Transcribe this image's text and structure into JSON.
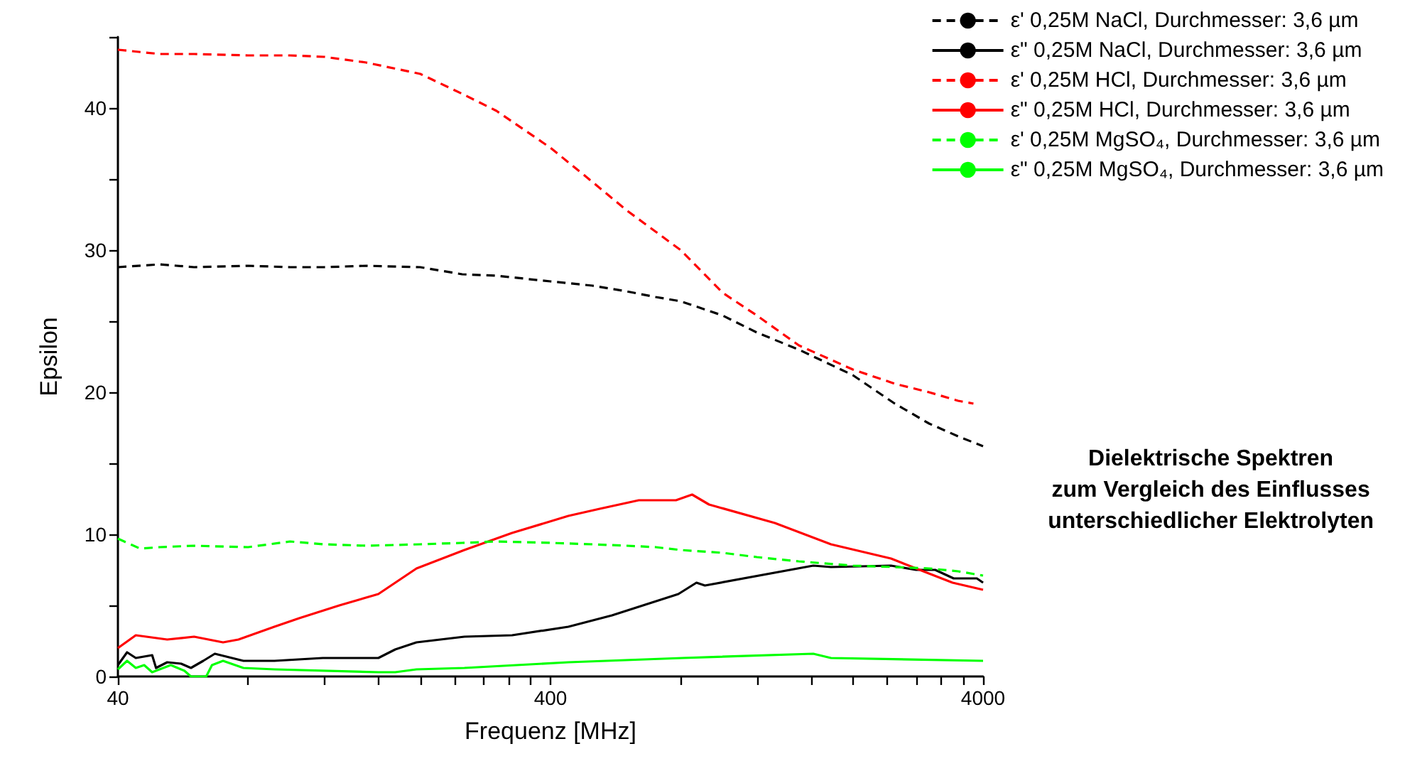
{
  "chart_data": {
    "type": "line",
    "xlabel": "Frequenz [MHz]",
    "ylabel": "Epsilon",
    "log": "x",
    "xlim": [
      40,
      4000
    ],
    "ylim": [
      0,
      45
    ],
    "xticks": [
      40,
      {
        "value": 80,
        "label": null
      },
      {
        "value": 120,
        "label": null
      },
      {
        "value": 160,
        "label": null
      },
      {
        "value": 200,
        "label": null
      },
      {
        "value": 240,
        "label": null
      },
      {
        "value": 280,
        "label": null
      },
      {
        "value": 320,
        "label": null
      },
      {
        "value": 360,
        "label": null
      },
      400,
      {
        "value": 800,
        "label": null
      },
      {
        "value": 1200,
        "label": null
      },
      {
        "value": 1600,
        "label": null
      },
      {
        "value": 2000,
        "label": null
      },
      {
        "value": 2400,
        "label": null
      },
      {
        "value": 2800,
        "label": null
      },
      {
        "value": 3200,
        "label": null
      },
      {
        "value": 3600,
        "label": null
      },
      4000
    ],
    "yticks": [
      0,
      {
        "value": 5,
        "label": null
      },
      10,
      {
        "value": 15,
        "label": null
      },
      20,
      {
        "value": 25,
        "label": null
      },
      30,
      {
        "value": 35,
        "label": null
      },
      40,
      {
        "value": 45,
        "label": null
      }
    ],
    "grid": false,
    "legend": "top right",
    "marker": "none",
    "annotations": [
      "Dielektrische Spektren\nzum Vergleich des Einflusses\nunterschiedlicher Elektrolyten"
    ],
    "series": [
      {
        "name": "ε' 0,25M NaCl, Durchmesser: 3,6 µm",
        "color": "#000000",
        "line_style": "dashed",
        "x": [
          40,
          50,
          60,
          80,
          100,
          120,
          150,
          200,
          250,
          300,
          400,
          500,
          600,
          700,
          800,
          1000,
          1200,
          1500,
          2000,
          2500,
          3000,
          3500,
          4000
        ],
        "values": [
          28.8,
          29.0,
          28.8,
          28.9,
          28.8,
          28.8,
          28.9,
          28.8,
          28.3,
          28.2,
          27.8,
          27.5,
          27.1,
          26.7,
          26.4,
          25.4,
          24.2,
          23.0,
          21.2,
          19.2,
          17.8,
          16.9,
          16.2
        ]
      },
      {
        "name": "ε\" 0,25M NaCl, Durchmesser: 3,6 µm",
        "color": "#000000",
        "line_style": "solid",
        "x": [
          40,
          42,
          44,
          48,
          49,
          52,
          56,
          59,
          63,
          67,
          78,
          92,
          119,
          160,
          175,
          196,
          253,
          326,
          440,
          555,
          790,
          870,
          910,
          1620,
          1780,
          2450,
          2800,
          3100,
          3420,
          3870,
          4000
        ],
        "values": [
          0.8,
          1.7,
          1.3,
          1.5,
          0.6,
          1.0,
          0.9,
          0.6,
          1.1,
          1.6,
          1.1,
          1.1,
          1.3,
          1.3,
          1.9,
          2.4,
          2.8,
          2.9,
          3.5,
          4.3,
          5.8,
          6.6,
          6.4,
          7.8,
          7.7,
          7.8,
          7.5,
          7.5,
          6.9,
          6.9,
          6.6
        ]
      },
      {
        "name": "ε' 0,25M HCl, Durchmesser: 3,6 µm",
        "color": "#ff0000",
        "line_style": "dashed",
        "x": [
          40,
          50,
          60,
          80,
          100,
          120,
          150,
          200,
          250,
          300,
          400,
          500,
          600,
          700,
          800,
          1000,
          1200,
          1500,
          2000,
          2500,
          3000,
          3500,
          3800
        ],
        "values": [
          44.1,
          43.8,
          43.8,
          43.7,
          43.7,
          43.6,
          43.2,
          42.4,
          41.0,
          39.8,
          37.2,
          34.8,
          32.8,
          31.3,
          30.0,
          27.0,
          25.4,
          23.3,
          21.6,
          20.6,
          20.0,
          19.4,
          19.2
        ]
      },
      {
        "name": "ε\" 0,25M HCl, Durchmesser: 3,6 µm",
        "color": "#ff0000",
        "line_style": "solid",
        "x": [
          40,
          44,
          52,
          60,
          70,
          76,
          92,
          105,
          130,
          160,
          196,
          253,
          326,
          440,
          520,
          640,
          780,
          850,
          930,
          1320,
          1780,
          2450,
          2800,
          3400,
          4000
        ],
        "values": [
          2.0,
          2.9,
          2.6,
          2.8,
          2.4,
          2.6,
          3.5,
          4.1,
          5.0,
          5.8,
          7.6,
          8.9,
          10.1,
          11.3,
          11.8,
          12.4,
          12.4,
          12.8,
          12.1,
          10.8,
          9.3,
          8.3,
          7.6,
          6.6,
          6.1
        ]
      },
      {
        "name": "ε' 0,25M MgSO₄, Durchmesser: 3,6 µm",
        "color": "#00ff00",
        "line_style": "dashed",
        "x": [
          40,
          45,
          50,
          60,
          80,
          100,
          120,
          150,
          200,
          250,
          300,
          400,
          500,
          600,
          700,
          800,
          1000,
          1200,
          1500,
          2000,
          2500,
          3000,
          3500,
          4000
        ],
        "values": [
          9.7,
          9.0,
          9.1,
          9.2,
          9.1,
          9.5,
          9.3,
          9.2,
          9.3,
          9.4,
          9.5,
          9.4,
          9.3,
          9.2,
          9.1,
          8.9,
          8.7,
          8.4,
          8.1,
          7.8,
          7.7,
          7.6,
          7.4,
          7.1
        ]
      },
      {
        "name": "ε\" 0,25M MgSO₄, Durchmesser: 3,6 µm",
        "color": "#00ff00",
        "line_style": "solid",
        "x": [
          40,
          42,
          44,
          46,
          48,
          53,
          57,
          59,
          64,
          66,
          70,
          78,
          92,
          160,
          175,
          196,
          253,
          440,
          808,
          1620,
          1780,
          4000
        ],
        "values": [
          0.5,
          1.1,
          0.6,
          0.8,
          0.3,
          0.8,
          0.4,
          0.0,
          0.0,
          0.8,
          1.1,
          0.6,
          0.5,
          0.3,
          0.3,
          0.5,
          0.6,
          1.0,
          1.3,
          1.6,
          1.3,
          1.1
        ]
      }
    ]
  }
}
